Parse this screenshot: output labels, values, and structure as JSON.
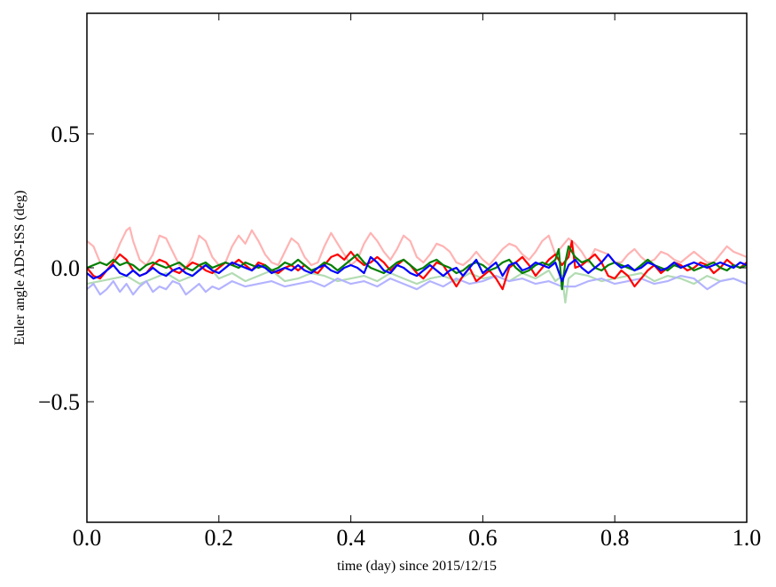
{
  "chart_data": {
    "type": "line",
    "xlabel": "time (day) since 2015/12/15",
    "ylabel": "Euler angle ADS-ISS (deg)",
    "xlim": [
      0.0,
      1.0
    ],
    "ylim": [
      -0.95,
      0.95
    ],
    "xticks": [
      0.0,
      0.2,
      0.4,
      0.6,
      0.8,
      1.0
    ],
    "xtick_labels": [
      "0.0",
      "0.2",
      "0.4",
      "0.6",
      "0.8",
      "1.0"
    ],
    "yticks": [
      -0.5,
      0.0,
      0.5
    ],
    "ytick_labels": [
      "−0.5",
      "0.0",
      "0.5"
    ],
    "grid": false,
    "legend": "none",
    "series": [
      {
        "color": "#ffb3b3",
        "x": [
          0.0,
          0.01,
          0.02,
          0.03,
          0.04,
          0.05,
          0.06,
          0.065,
          0.07,
          0.08,
          0.09,
          0.1,
          0.11,
          0.12,
          0.13,
          0.14,
          0.15,
          0.16,
          0.17,
          0.18,
          0.19,
          0.2,
          0.21,
          0.22,
          0.23,
          0.24,
          0.25,
          0.26,
          0.27,
          0.28,
          0.29,
          0.3,
          0.31,
          0.32,
          0.33,
          0.34,
          0.35,
          0.36,
          0.37,
          0.38,
          0.39,
          0.4,
          0.41,
          0.42,
          0.43,
          0.44,
          0.45,
          0.46,
          0.47,
          0.48,
          0.49,
          0.5,
          0.51,
          0.52,
          0.53,
          0.54,
          0.55,
          0.56,
          0.57,
          0.58,
          0.59,
          0.6,
          0.61,
          0.62,
          0.63,
          0.64,
          0.65,
          0.66,
          0.67,
          0.68,
          0.69,
          0.7,
          0.71,
          0.72,
          0.73,
          0.74,
          0.75,
          0.76,
          0.77,
          0.78,
          0.79,
          0.8,
          0.81,
          0.82,
          0.83,
          0.84,
          0.85,
          0.86,
          0.87,
          0.88,
          0.89,
          0.9,
          0.91,
          0.92,
          0.93,
          0.94,
          0.95,
          0.96,
          0.97,
          0.98,
          0.99,
          1.0
        ],
        "y": [
          0.1,
          0.08,
          0.02,
          0.01,
          0.03,
          0.09,
          0.14,
          0.15,
          0.1,
          0.03,
          0.01,
          0.05,
          0.12,
          0.11,
          0.06,
          0.01,
          0.0,
          0.04,
          0.12,
          0.1,
          0.04,
          0.01,
          0.02,
          0.08,
          0.12,
          0.09,
          0.14,
          0.1,
          0.05,
          0.02,
          0.01,
          0.06,
          0.11,
          0.09,
          0.04,
          0.01,
          0.02,
          0.08,
          0.13,
          0.09,
          0.05,
          0.01,
          0.03,
          0.09,
          0.13,
          0.1,
          0.06,
          0.03,
          0.07,
          0.12,
          0.1,
          0.04,
          0.02,
          0.05,
          0.09,
          0.08,
          0.06,
          0.02,
          0.01,
          0.03,
          0.06,
          0.03,
          0.01,
          0.04,
          0.07,
          0.09,
          0.08,
          0.05,
          0.03,
          0.06,
          0.1,
          0.12,
          0.05,
          0.08,
          0.11,
          0.09,
          0.06,
          0.02,
          0.07,
          0.06,
          0.05,
          0.02,
          0.02,
          0.05,
          0.07,
          0.04,
          0.02,
          0.03,
          0.06,
          0.05,
          0.03,
          0.02,
          0.04,
          0.06,
          0.04,
          0.02,
          0.02,
          0.05,
          0.08,
          0.06,
          0.05,
          0.04
        ]
      },
      {
        "color": "#b3dcb3",
        "x": [
          0.0,
          0.02,
          0.04,
          0.06,
          0.08,
          0.1,
          0.12,
          0.14,
          0.16,
          0.18,
          0.2,
          0.22,
          0.24,
          0.26,
          0.28,
          0.3,
          0.32,
          0.34,
          0.36,
          0.38,
          0.4,
          0.42,
          0.44,
          0.46,
          0.48,
          0.5,
          0.52,
          0.54,
          0.56,
          0.58,
          0.6,
          0.62,
          0.64,
          0.66,
          0.68,
          0.7,
          0.71,
          0.72,
          0.725,
          0.73,
          0.74,
          0.76,
          0.78,
          0.8,
          0.82,
          0.84,
          0.86,
          0.88,
          0.9,
          0.92,
          0.94,
          0.96,
          0.98,
          1.0
        ],
        "y": [
          -0.06,
          -0.05,
          -0.04,
          -0.03,
          -0.06,
          -0.04,
          -0.02,
          -0.05,
          -0.03,
          0.02,
          -0.04,
          -0.02,
          -0.05,
          -0.03,
          -0.01,
          -0.05,
          -0.04,
          -0.02,
          -0.03,
          -0.05,
          -0.04,
          -0.03,
          -0.05,
          -0.02,
          -0.04,
          -0.06,
          -0.04,
          -0.03,
          -0.05,
          -0.02,
          -0.04,
          -0.03,
          -0.05,
          -0.02,
          -0.04,
          -0.01,
          -0.05,
          -0.03,
          -0.13,
          -0.04,
          -0.02,
          -0.03,
          -0.05,
          -0.04,
          -0.03,
          -0.02,
          -0.05,
          -0.03,
          -0.04,
          -0.06,
          -0.03,
          -0.05,
          -0.04,
          -0.06
        ]
      },
      {
        "color": "#b3b3ff",
        "x": [
          0.0,
          0.01,
          0.02,
          0.03,
          0.04,
          0.05,
          0.06,
          0.07,
          0.08,
          0.09,
          0.1,
          0.11,
          0.12,
          0.13,
          0.14,
          0.15,
          0.16,
          0.17,
          0.18,
          0.19,
          0.2,
          0.22,
          0.24,
          0.26,
          0.28,
          0.3,
          0.32,
          0.34,
          0.36,
          0.38,
          0.4,
          0.42,
          0.44,
          0.46,
          0.48,
          0.5,
          0.52,
          0.54,
          0.56,
          0.58,
          0.6,
          0.62,
          0.64,
          0.66,
          0.68,
          0.7,
          0.72,
          0.74,
          0.76,
          0.78,
          0.8,
          0.82,
          0.84,
          0.86,
          0.88,
          0.9,
          0.92,
          0.94,
          0.96,
          0.98,
          1.0
        ],
        "y": [
          -0.08,
          -0.06,
          -0.1,
          -0.08,
          -0.05,
          -0.09,
          -0.06,
          -0.1,
          -0.07,
          -0.05,
          -0.09,
          -0.07,
          -0.08,
          -0.05,
          -0.06,
          -0.1,
          -0.08,
          -0.06,
          -0.09,
          -0.07,
          -0.08,
          -0.05,
          -0.07,
          -0.06,
          -0.05,
          -0.07,
          -0.06,
          -0.05,
          -0.07,
          -0.04,
          -0.06,
          -0.05,
          -0.07,
          -0.04,
          -0.06,
          -0.08,
          -0.05,
          -0.07,
          -0.04,
          -0.06,
          -0.05,
          -0.03,
          -0.05,
          -0.04,
          -0.06,
          -0.05,
          -0.07,
          -0.07,
          -0.05,
          -0.04,
          -0.06,
          -0.05,
          -0.04,
          -0.06,
          -0.05,
          -0.03,
          -0.04,
          -0.08,
          -0.05,
          -0.04,
          -0.06
        ]
      },
      {
        "color": "#ff0000",
        "x": [
          0.0,
          0.01,
          0.02,
          0.03,
          0.04,
          0.05,
          0.06,
          0.07,
          0.08,
          0.09,
          0.1,
          0.11,
          0.12,
          0.13,
          0.14,
          0.15,
          0.16,
          0.17,
          0.18,
          0.19,
          0.2,
          0.21,
          0.22,
          0.23,
          0.24,
          0.25,
          0.26,
          0.27,
          0.28,
          0.29,
          0.3,
          0.31,
          0.32,
          0.33,
          0.34,
          0.35,
          0.36,
          0.37,
          0.38,
          0.39,
          0.4,
          0.41,
          0.42,
          0.43,
          0.44,
          0.45,
          0.46,
          0.47,
          0.48,
          0.49,
          0.5,
          0.51,
          0.52,
          0.53,
          0.54,
          0.55,
          0.56,
          0.57,
          0.58,
          0.59,
          0.6,
          0.61,
          0.62,
          0.63,
          0.64,
          0.65,
          0.66,
          0.67,
          0.68,
          0.69,
          0.7,
          0.71,
          0.72,
          0.73,
          0.735,
          0.74,
          0.75,
          0.76,
          0.77,
          0.78,
          0.79,
          0.8,
          0.81,
          0.82,
          0.83,
          0.84,
          0.85,
          0.86,
          0.87,
          0.88,
          0.89,
          0.9,
          0.91,
          0.92,
          0.93,
          0.94,
          0.95,
          0.96,
          0.97,
          0.98,
          0.99,
          1.0
        ],
        "y": [
          0.0,
          -0.03,
          -0.04,
          -0.01,
          0.02,
          0.05,
          0.03,
          -0.01,
          -0.03,
          -0.02,
          0.01,
          0.03,
          0.02,
          -0.01,
          -0.02,
          0.0,
          0.02,
          0.01,
          -0.01,
          -0.02,
          0.0,
          0.02,
          0.01,
          0.03,
          0.01,
          -0.01,
          0.02,
          0.01,
          -0.01,
          -0.02,
          0.0,
          0.01,
          -0.01,
          0.01,
          -0.01,
          -0.02,
          0.01,
          0.04,
          0.05,
          0.03,
          0.06,
          0.03,
          0.01,
          0.02,
          0.04,
          0.02,
          -0.01,
          0.01,
          0.03,
          0.01,
          -0.02,
          -0.04,
          -0.01,
          0.02,
          0.01,
          -0.03,
          -0.07,
          -0.03,
          0.0,
          -0.05,
          -0.03,
          -0.01,
          -0.04,
          -0.08,
          0.0,
          0.02,
          0.04,
          0.01,
          -0.03,
          0.0,
          0.03,
          0.05,
          0.01,
          0.04,
          0.1,
          0.0,
          0.01,
          0.03,
          0.05,
          0.02,
          -0.03,
          -0.04,
          -0.01,
          -0.03,
          -0.07,
          -0.04,
          -0.01,
          0.01,
          -0.02,
          0.0,
          0.02,
          0.01,
          -0.01,
          0.0,
          0.02,
          0.01,
          -0.02,
          0.0,
          0.03,
          0.01,
          0.0,
          0.02
        ]
      },
      {
        "color": "#007f00",
        "x": [
          0.0,
          0.01,
          0.02,
          0.03,
          0.04,
          0.05,
          0.06,
          0.07,
          0.08,
          0.09,
          0.1,
          0.11,
          0.12,
          0.13,
          0.14,
          0.15,
          0.16,
          0.17,
          0.18,
          0.19,
          0.2,
          0.21,
          0.22,
          0.23,
          0.24,
          0.25,
          0.26,
          0.27,
          0.28,
          0.29,
          0.3,
          0.31,
          0.32,
          0.33,
          0.34,
          0.35,
          0.36,
          0.37,
          0.38,
          0.39,
          0.4,
          0.41,
          0.42,
          0.43,
          0.44,
          0.45,
          0.46,
          0.47,
          0.48,
          0.49,
          0.5,
          0.51,
          0.52,
          0.53,
          0.54,
          0.55,
          0.56,
          0.57,
          0.58,
          0.59,
          0.6,
          0.61,
          0.62,
          0.63,
          0.64,
          0.65,
          0.66,
          0.67,
          0.68,
          0.69,
          0.7,
          0.71,
          0.715,
          0.72,
          0.725,
          0.73,
          0.74,
          0.75,
          0.76,
          0.77,
          0.78,
          0.79,
          0.8,
          0.81,
          0.82,
          0.83,
          0.84,
          0.85,
          0.86,
          0.87,
          0.88,
          0.89,
          0.9,
          0.91,
          0.92,
          0.93,
          0.94,
          0.95,
          0.96,
          0.97,
          0.98,
          0.99,
          1.0
        ],
        "y": [
          0.0,
          0.01,
          0.02,
          0.01,
          0.03,
          0.01,
          0.02,
          0.01,
          -0.01,
          0.01,
          0.02,
          0.01,
          0.0,
          0.01,
          0.02,
          0.0,
          -0.01,
          0.01,
          0.02,
          0.0,
          0.01,
          0.02,
          0.01,
          0.0,
          0.02,
          0.01,
          0.0,
          0.01,
          -0.01,
          0.0,
          0.02,
          0.01,
          0.03,
          0.01,
          -0.01,
          0.0,
          0.02,
          0.01,
          -0.01,
          0.01,
          0.03,
          0.05,
          0.02,
          0.0,
          -0.01,
          -0.02,
          0.0,
          0.02,
          0.03,
          0.01,
          -0.01,
          0.0,
          0.02,
          0.03,
          0.01,
          0.0,
          -0.02,
          -0.01,
          0.01,
          0.02,
          0.01,
          -0.01,
          0.0,
          0.02,
          0.03,
          0.0,
          -0.02,
          -0.01,
          0.01,
          0.02,
          0.01,
          0.03,
          0.07,
          -0.08,
          0.02,
          0.08,
          0.04,
          0.02,
          0.03,
          0.0,
          -0.01,
          0.01,
          0.02,
          0.01,
          0.0,
          -0.01,
          0.01,
          0.03,
          0.01,
          0.0,
          -0.01,
          0.01,
          0.0,
          0.01,
          -0.01,
          0.0,
          0.01,
          0.02,
          0.0,
          -0.01,
          0.01,
          0.0,
          0.01
        ]
      },
      {
        "color": "#0000ff",
        "x": [
          0.0,
          0.01,
          0.02,
          0.03,
          0.04,
          0.05,
          0.06,
          0.07,
          0.08,
          0.09,
          0.1,
          0.11,
          0.12,
          0.13,
          0.14,
          0.15,
          0.16,
          0.17,
          0.18,
          0.19,
          0.2,
          0.21,
          0.22,
          0.23,
          0.24,
          0.25,
          0.26,
          0.27,
          0.28,
          0.29,
          0.3,
          0.31,
          0.32,
          0.33,
          0.34,
          0.35,
          0.36,
          0.37,
          0.38,
          0.39,
          0.4,
          0.41,
          0.42,
          0.43,
          0.44,
          0.45,
          0.46,
          0.47,
          0.48,
          0.49,
          0.5,
          0.51,
          0.52,
          0.53,
          0.54,
          0.55,
          0.56,
          0.57,
          0.58,
          0.59,
          0.6,
          0.61,
          0.62,
          0.63,
          0.64,
          0.65,
          0.66,
          0.67,
          0.68,
          0.69,
          0.7,
          0.71,
          0.72,
          0.73,
          0.74,
          0.75,
          0.76,
          0.77,
          0.78,
          0.79,
          0.8,
          0.81,
          0.82,
          0.83,
          0.84,
          0.85,
          0.86,
          0.87,
          0.88,
          0.89,
          0.9,
          0.91,
          0.92,
          0.93,
          0.94,
          0.95,
          0.96,
          0.97,
          0.98,
          0.99,
          1.0
        ],
        "y": [
          -0.02,
          -0.04,
          -0.03,
          -0.01,
          0.01,
          -0.02,
          -0.03,
          -0.01,
          -0.03,
          -0.02,
          0.0,
          -0.02,
          -0.03,
          -0.01,
          0.0,
          -0.02,
          -0.03,
          -0.01,
          0.01,
          -0.01,
          -0.02,
          0.0,
          0.02,
          0.01,
          0.0,
          -0.01,
          0.01,
          0.0,
          -0.02,
          -0.01,
          0.0,
          -0.01,
          0.01,
          -0.01,
          -0.02,
          0.0,
          0.01,
          -0.01,
          -0.02,
          0.0,
          0.01,
          0.0,
          -0.02,
          0.04,
          0.02,
          -0.01,
          -0.02,
          0.01,
          0.0,
          -0.02,
          -0.03,
          -0.01,
          0.01,
          -0.01,
          -0.03,
          -0.01,
          0.0,
          -0.03,
          0.0,
          0.03,
          -0.02,
          0.0,
          0.02,
          -0.03,
          0.01,
          0.02,
          -0.01,
          0.0,
          0.02,
          0.01,
          0.0,
          0.02,
          -0.05,
          0.01,
          0.03,
          0.0,
          -0.02,
          0.0,
          0.02,
          0.05,
          0.02,
          0.0,
          0.01,
          -0.01,
          0.0,
          0.02,
          0.01,
          -0.01,
          0.0,
          0.02,
          0.0,
          0.01,
          0.02,
          0.01,
          0.0,
          0.01,
          0.02,
          0.01,
          0.0,
          0.02,
          0.01
        ]
      }
    ]
  }
}
